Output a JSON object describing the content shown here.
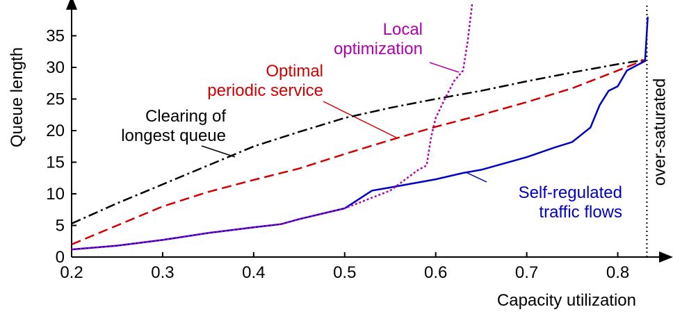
{
  "chart_data": {
    "type": "line",
    "x_label": "Capacity utilization",
    "y_label": "Queue length",
    "xlim": [
      0.2,
      0.85
    ],
    "ylim": [
      0,
      40
    ],
    "xticks": [
      0.2,
      0.3,
      0.4,
      0.5,
      0.6,
      0.7,
      0.8
    ],
    "yticks": [
      0,
      5,
      10,
      15,
      20,
      25,
      30,
      35
    ],
    "vline": {
      "x": 0.832,
      "label": "over-saturated"
    },
    "annotations": [
      {
        "lines": [
          "Local",
          "optimization"
        ],
        "color": "#b000b0"
      },
      {
        "lines": [
          "Optimal",
          "periodic service"
        ],
        "color": "#d00000"
      },
      {
        "lines": [
          "Clearing of",
          "longest queue"
        ],
        "color": "#000000"
      },
      {
        "lines": [
          "Self-regulated",
          "traffic flows"
        ],
        "color": "#0000c0"
      }
    ],
    "series": [
      {
        "name": "Clearing of longest queue",
        "color": "#000000",
        "dash": "14,5,3,5",
        "x": [
          0.2,
          0.25,
          0.3,
          0.35,
          0.4,
          0.45,
          0.5,
          0.55,
          0.6,
          0.65,
          0.7,
          0.75,
          0.8,
          0.83
        ],
        "values": [
          5.3,
          8.5,
          11.5,
          14.5,
          17.5,
          19.8,
          22,
          23.6,
          25,
          26.3,
          27.8,
          29.2,
          30.5,
          31.2
        ]
      },
      {
        "name": "Optimal periodic service",
        "color": "#d00000",
        "dash": "14,7",
        "x": [
          0.2,
          0.25,
          0.3,
          0.35,
          0.4,
          0.45,
          0.5,
          0.55,
          0.6,
          0.65,
          0.7,
          0.75,
          0.8,
          0.83
        ],
        "values": [
          2,
          5,
          8,
          10.3,
          12.2,
          14,
          16.3,
          18.5,
          20.6,
          22.5,
          24.5,
          26.7,
          29.5,
          31.2
        ]
      },
      {
        "name": "Self-regulated traffic flows",
        "color": "#0000c0",
        "dash": "",
        "x": [
          0.2,
          0.25,
          0.3,
          0.35,
          0.4,
          0.43,
          0.45,
          0.5,
          0.53,
          0.55,
          0.6,
          0.63,
          0.65,
          0.7,
          0.73,
          0.75,
          0.77,
          0.78,
          0.79,
          0.8,
          0.81,
          0.83,
          0.833
        ],
        "values": [
          1.2,
          1.8,
          2.7,
          3.8,
          4.7,
          5.2,
          6,
          7.7,
          10.5,
          11,
          12.3,
          13.3,
          13.8,
          15.8,
          17.3,
          18.2,
          20.5,
          24,
          26.3,
          27,
          29.5,
          31,
          38
        ]
      },
      {
        "name": "Local optimization",
        "color": "#b000b0",
        "dash": "3,3",
        "x": [
          0.2,
          0.25,
          0.3,
          0.35,
          0.4,
          0.43,
          0.45,
          0.5,
          0.55,
          0.58,
          0.59,
          0.595,
          0.6,
          0.61,
          0.62,
          0.63,
          0.635,
          0.64
        ],
        "values": [
          1.2,
          1.8,
          2.7,
          3.8,
          4.7,
          5.2,
          6,
          7.7,
          10.5,
          13.7,
          14.5,
          19,
          22,
          25,
          27.8,
          29.5,
          34,
          40
        ]
      }
    ]
  }
}
